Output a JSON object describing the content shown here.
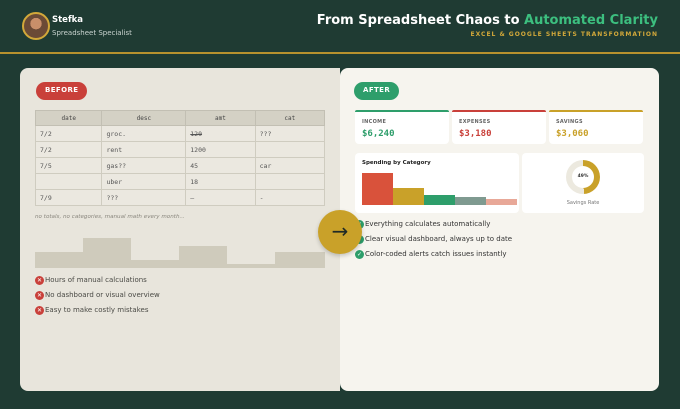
{
  "profile": {
    "name": "Stefka",
    "role": "Spreadsheet Specialist"
  },
  "header": {
    "title_main": "From Spreadsheet Chaos to ",
    "title_accent": "Automated Clarity",
    "subtitle": "EXCEL & GOOGLE SHEETS TRANSFORMATION"
  },
  "before": {
    "badge": "BEFORE",
    "columns": [
      "date",
      "desc",
      "amt",
      "cat"
    ],
    "rows": [
      [
        "7/2",
        "groc.",
        "120",
        "???"
      ],
      [
        "7/2",
        "rent",
        "1200",
        ""
      ],
      [
        "7/5",
        "gas??",
        "45",
        "car"
      ],
      [
        "",
        "uber",
        "18",
        ""
      ],
      [
        "7/9",
        "???",
        "—",
        "-"
      ]
    ],
    "note": "no totals, no categories, manual math every month...",
    "issues": [
      "Hours of manual calculations",
      "No dashboard or visual overview",
      "Easy to make costly mistakes"
    ]
  },
  "after": {
    "badge": "AFTER",
    "kpis": [
      {
        "label": "INCOME",
        "value": "$6,240",
        "color": "#2e9e6b"
      },
      {
        "label": "EXPENSES",
        "value": "$3,180",
        "color": "#c9403a"
      },
      {
        "label": "SAVINGS",
        "value": "$3,060",
        "color": "#c9a129"
      }
    ],
    "spending_title": "Spending by Category",
    "spending_bars": [
      {
        "value": 100,
        "color": "#d9523b"
      },
      {
        "value": 52,
        "color": "#c9a129"
      },
      {
        "value": 32,
        "color": "#2e9e6b"
      },
      {
        "value": 26,
        "color": "#7f9a90"
      },
      {
        "value": 18,
        "color": "#e8a898"
      }
    ],
    "savings_rate": {
      "value": 49,
      "label": "49%",
      "caption": "Savings Rate"
    },
    "benefits": [
      "Everything calculates automatically",
      "Clear visual dashboard, always up to date",
      "Color-coded alerts catch issues instantly"
    ]
  },
  "icons": {
    "arrow": "arrow-right-icon",
    "issue": "x-icon",
    "benefit": "check-icon"
  }
}
